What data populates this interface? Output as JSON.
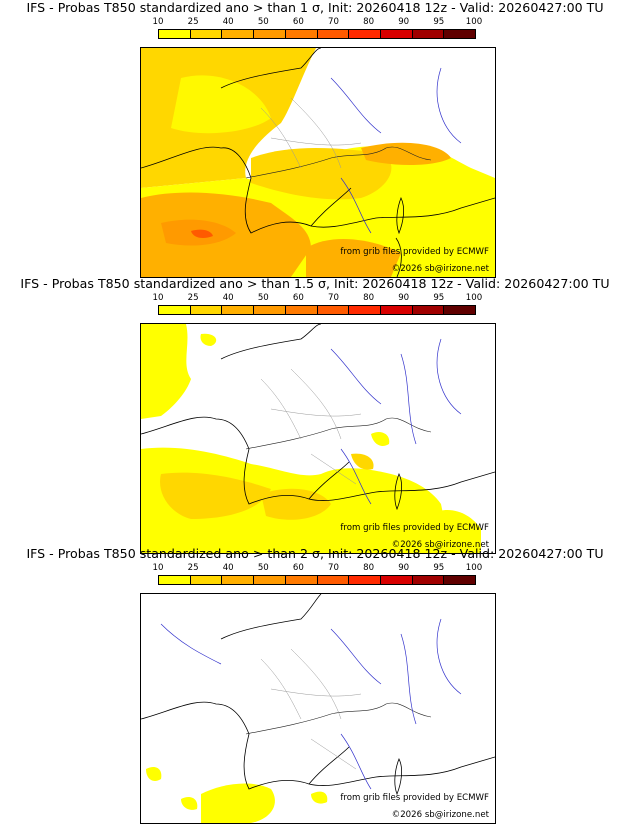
{
  "colorbar": {
    "ticks": [
      "10",
      "25",
      "40",
      "50",
      "60",
      "70",
      "80",
      "90",
      "95",
      "100"
    ],
    "colors": [
      "#ffff00",
      "#ffd700",
      "#ffb000",
      "#ff9a00",
      "#ff7a00",
      "#ff5a00",
      "#ff2a00",
      "#d80000",
      "#a00000",
      "#600000"
    ]
  },
  "panels": [
    {
      "title": "IFS - Probas T850  standardized ano > than 1 σ, Init: 20260418 12z - Valid: 20260427:00 TU",
      "source": "from grib files provided by ECMWF",
      "copyright": "©2026 sb@irizone.net"
    },
    {
      "title": "IFS - Probas T850  standardized ano > than 1.5 σ, Init: 20260418 12z - Valid: 20260427:00 TU",
      "source": "from grib files provided by ECMWF",
      "copyright": "©2026 sb@irizone.net"
    },
    {
      "title": "IFS - Probas T850  standardized ano > than 2 σ, Init: 20260418 12z - Valid: 20260427:00 TU",
      "source": "from grib files provided by ECMWF",
      "copyright": "©2026 sb@irizone.net"
    }
  ]
}
